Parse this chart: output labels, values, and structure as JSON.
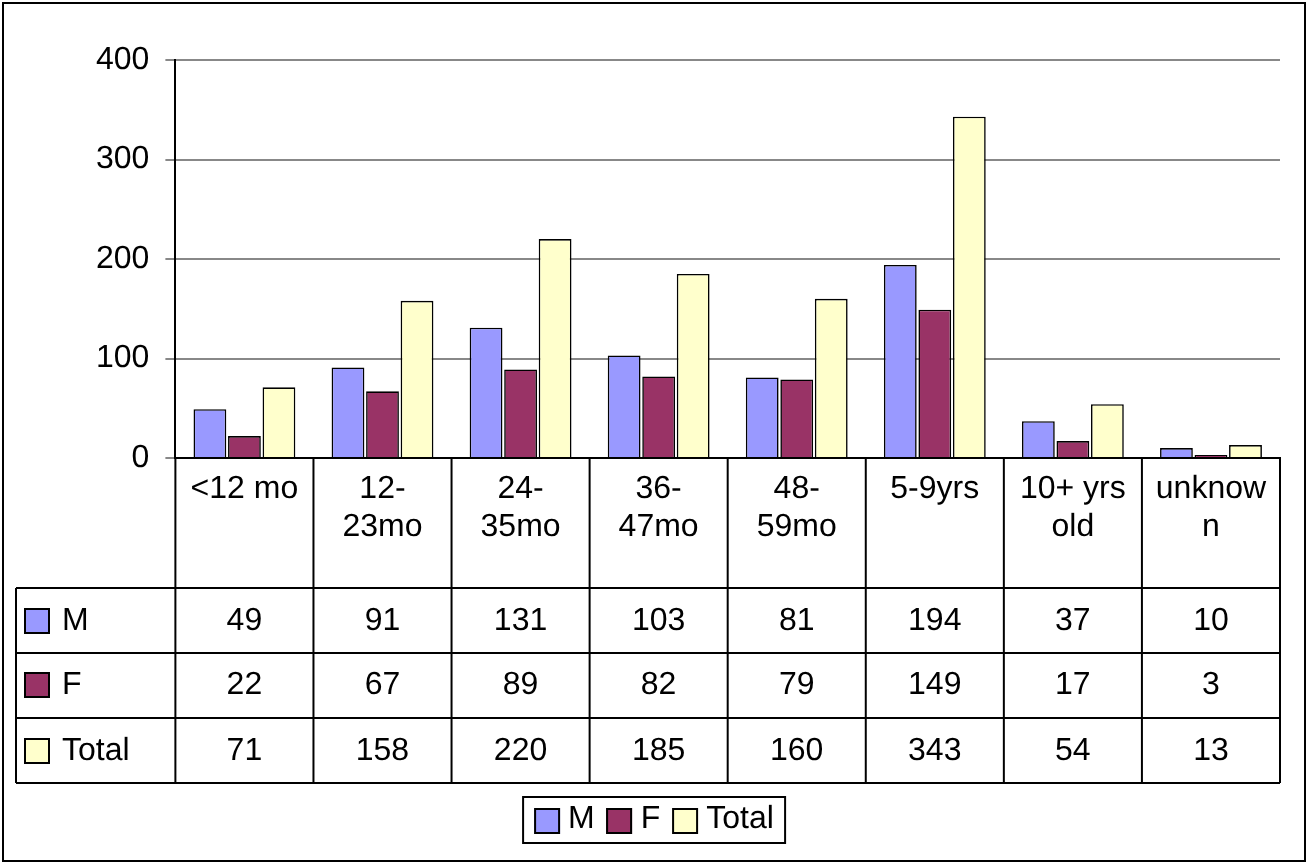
{
  "chart_data": {
    "type": "bar",
    "categories": [
      "<12 mo",
      "12-23mo",
      "24-35mo",
      "36-47mo",
      "48-59mo",
      "5-9yrs",
      "10+ yrs old",
      "unknown"
    ],
    "series": [
      {
        "name": "M",
        "color": "#9999ff",
        "values": [
          49,
          91,
          131,
          103,
          81,
          194,
          37,
          10
        ]
      },
      {
        "name": "F",
        "color": "#993366",
        "values": [
          22,
          67,
          89,
          82,
          79,
          149,
          17,
          3
        ]
      },
      {
        "name": "Total",
        "color": "#ffffcc",
        "values": [
          71,
          158,
          220,
          185,
          160,
          343,
          54,
          13
        ]
      }
    ],
    "ylim": [
      0,
      400
    ],
    "yticks": [
      0,
      100,
      200,
      300,
      400
    ],
    "grid": "y",
    "legend": "bottom",
    "data_labels": true
  }
}
